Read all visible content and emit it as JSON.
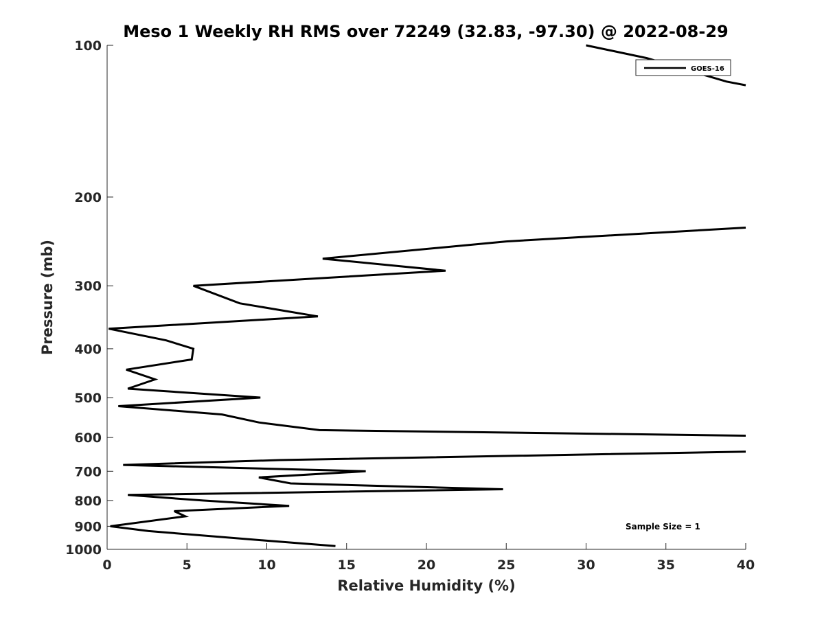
{
  "chart_data": {
    "type": "line",
    "title": "Meso 1 Weekly RH RMS over 72249 (32.83, -97.30) @ 2022-08-29",
    "xlabel": "Relative Humidity (%)",
    "ylabel": "Pressure (mb)",
    "xlim": [
      0,
      40
    ],
    "ylim": [
      100,
      1000
    ],
    "y_scale": "log",
    "y_reversed": true,
    "grid": false,
    "legend_position": "top-right",
    "x_ticks": [
      0,
      5,
      10,
      15,
      20,
      25,
      30,
      35,
      40
    ],
    "x_tick_labels": [
      "0",
      "5",
      "10",
      "15",
      "20",
      "25",
      "30",
      "35",
      "40"
    ],
    "y_ticks": [
      100,
      200,
      300,
      400,
      500,
      600,
      700,
      800,
      900,
      1000
    ],
    "y_tick_labels": [
      "100",
      "200",
      "300",
      "400",
      "500",
      "600",
      "700",
      "800",
      "900",
      "1000"
    ],
    "series": [
      {
        "name": "GOES-16",
        "color": "#000000",
        "points": [
          {
            "x": 30.0,
            "y": 100
          },
          {
            "x": 33.8,
            "y": 106
          },
          {
            "x": 38.8,
            "y": 118
          },
          {
            "x": 40.0,
            "y": 120
          },
          {
            "x": null,
            "y": null
          },
          {
            "x": 40.0,
            "y": 230
          },
          {
            "x": 25.0,
            "y": 245
          },
          {
            "x": 13.5,
            "y": 265
          },
          {
            "x": 21.2,
            "y": 280
          },
          {
            "x": 5.4,
            "y": 300
          },
          {
            "x": 8.3,
            "y": 325
          },
          {
            "x": 13.2,
            "y": 345
          },
          {
            "x": 0.1,
            "y": 365
          },
          {
            "x": 3.7,
            "y": 385
          },
          {
            "x": 5.4,
            "y": 400
          },
          {
            "x": 5.3,
            "y": 420
          },
          {
            "x": 1.2,
            "y": 440
          },
          {
            "x": 3.0,
            "y": 460
          },
          {
            "x": 1.3,
            "y": 480
          },
          {
            "x": 9.6,
            "y": 500
          },
          {
            "x": 0.7,
            "y": 520
          },
          {
            "x": 7.2,
            "y": 540
          },
          {
            "x": 9.5,
            "y": 560
          },
          {
            "x": 13.3,
            "y": 580
          },
          {
            "x": 40.0,
            "y": 595
          },
          {
            "x": null,
            "y": null
          },
          {
            "x": 40.0,
            "y": 640
          },
          {
            "x": 10.8,
            "y": 665
          },
          {
            "x": 1.0,
            "y": 680
          },
          {
            "x": 16.2,
            "y": 700
          },
          {
            "x": 9.5,
            "y": 720
          },
          {
            "x": 11.5,
            "y": 740
          },
          {
            "x": 24.8,
            "y": 760
          },
          {
            "x": 1.3,
            "y": 780
          },
          {
            "x": 6.0,
            "y": 800
          },
          {
            "x": 11.4,
            "y": 820
          },
          {
            "x": 4.2,
            "y": 840
          },
          {
            "x": 4.9,
            "y": 860
          },
          {
            "x": 0.2,
            "y": 900
          },
          {
            "x": 2.6,
            "y": 920
          },
          {
            "x": 9.8,
            "y": 960
          },
          {
            "x": 14.3,
            "y": 985
          }
        ]
      }
    ],
    "annotation": "Sample Size = 1"
  }
}
